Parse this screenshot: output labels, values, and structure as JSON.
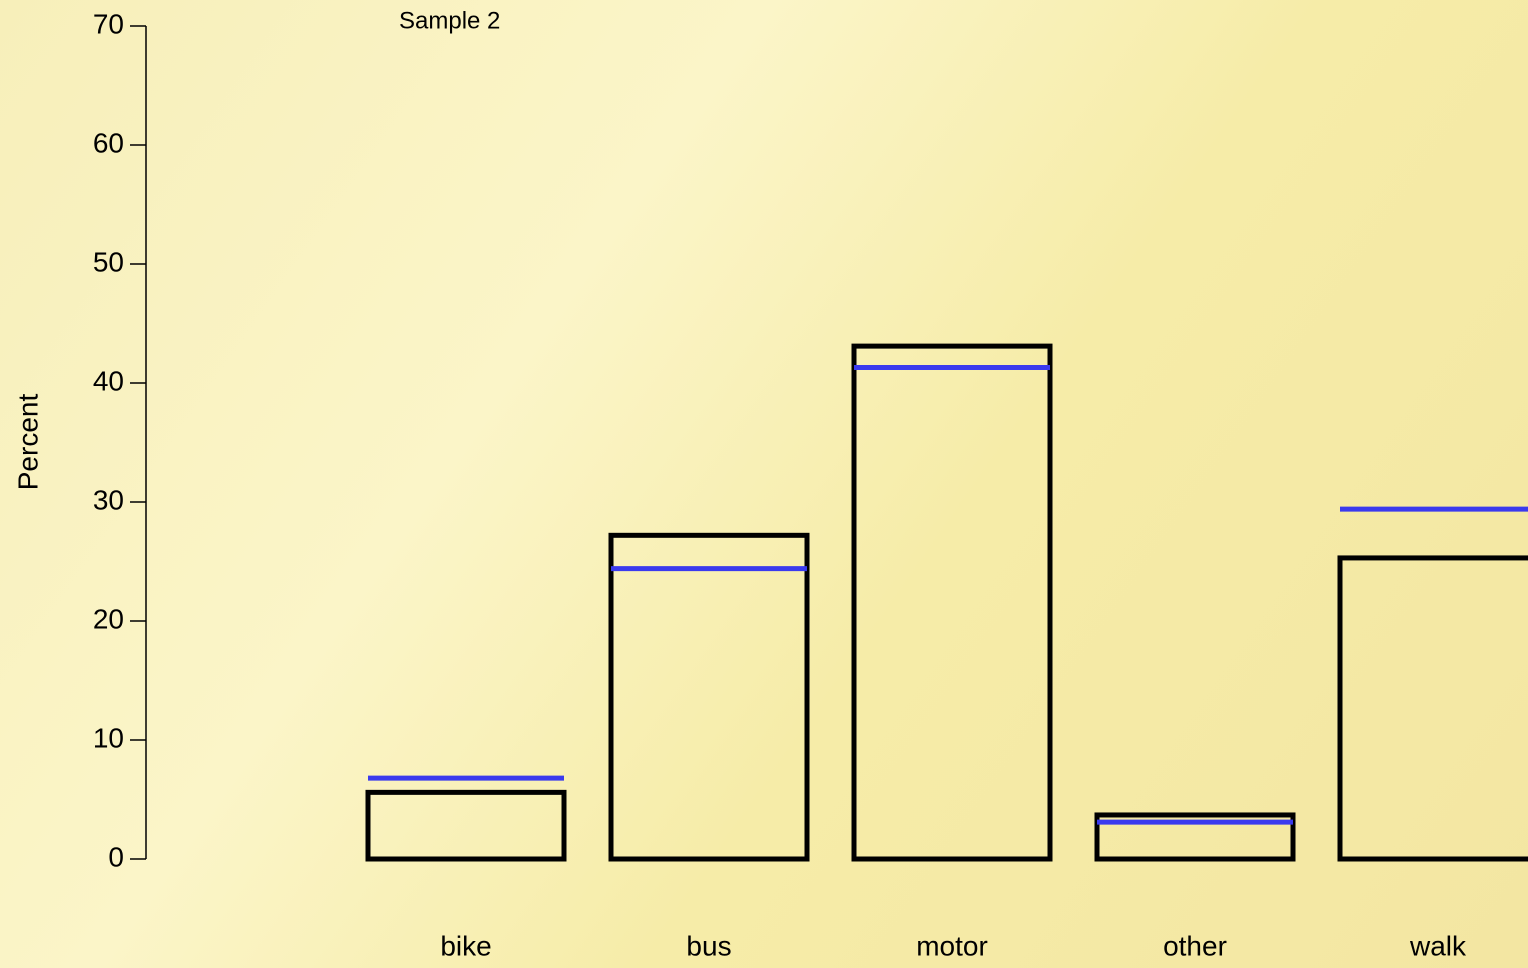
{
  "chart_data": {
    "type": "bar",
    "annotation": "Sample 2",
    "ylabel": "Percent",
    "categories": [
      "bike",
      "bus",
      "motor",
      "other",
      "walk"
    ],
    "series": [
      {
        "color": "#000000",
        "style": "outline",
        "values": [
          5.6,
          27.2,
          43.1,
          3.7,
          25.3
        ]
      },
      {
        "color": "#3a3aee",
        "style": "segment",
        "values": [
          6.8,
          24.4,
          41.3,
          3.1,
          29.4
        ]
      }
    ],
    "ylim": [
      0,
      70
    ],
    "yticks": [
      0,
      10,
      20,
      30,
      40,
      50,
      60,
      70
    ]
  }
}
